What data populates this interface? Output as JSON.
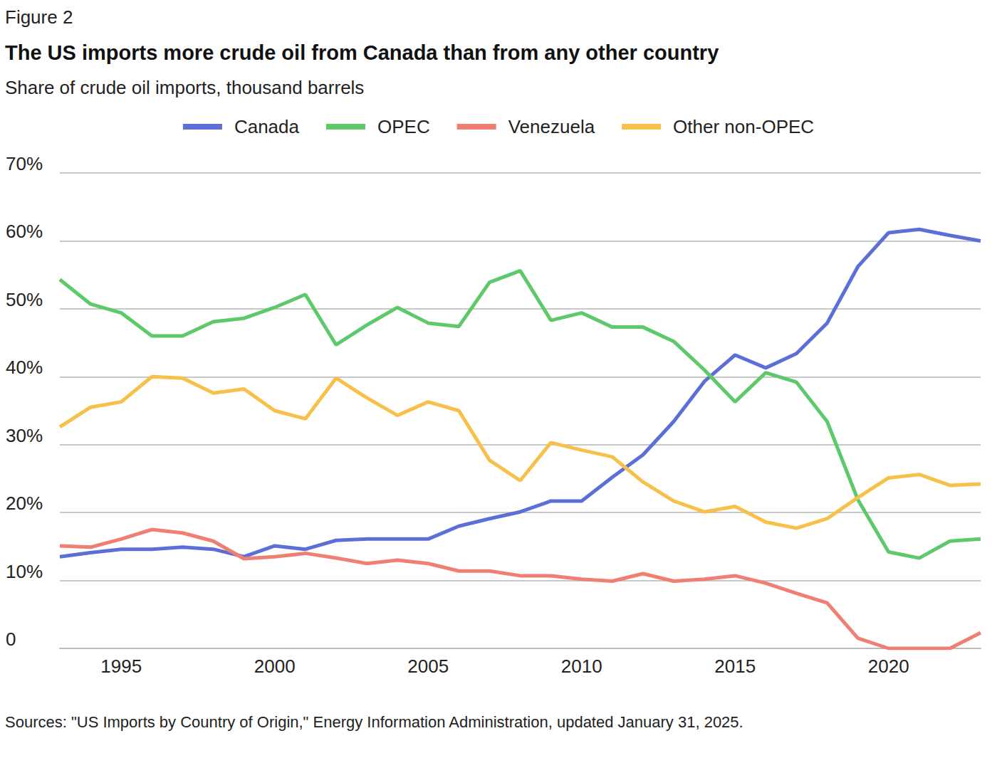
{
  "chart_data": {
    "type": "line",
    "label": "Figure 2",
    "title": "The US imports more crude oil from Canada than from any other country",
    "subtitle": "Share of crude oil imports, thousand barrels",
    "source": "Sources: \"US Imports by Country of Origin,\" Energy Information Administration, updated January 31, 2025.",
    "x": [
      1993,
      1994,
      1995,
      1996,
      1997,
      1998,
      1999,
      2000,
      2001,
      2002,
      2003,
      2004,
      2005,
      2006,
      2007,
      2008,
      2009,
      2010,
      2011,
      2012,
      2013,
      2014,
      2015,
      2016,
      2017,
      2018,
      2019,
      2020,
      2021,
      2022,
      2023
    ],
    "series": [
      {
        "name": "Canada",
        "color": "#5b6fd6",
        "values": [
          13.5,
          14.1,
          14.6,
          14.6,
          14.9,
          14.6,
          13.5,
          15.1,
          14.6,
          15.9,
          16.1,
          16.1,
          16.1,
          18.0,
          19.1,
          20.1,
          21.7,
          21.7,
          25.2,
          28.5,
          33.4,
          39.3,
          43.2,
          41.3,
          43.4,
          47.9,
          56.2,
          61.2,
          61.7,
          60.8,
          60.0
        ]
      },
      {
        "name": "OPEC",
        "color": "#5ec96a",
        "values": [
          54.3,
          50.7,
          49.4,
          46.0,
          46.0,
          48.1,
          48.6,
          50.2,
          52.1,
          44.7,
          47.6,
          50.2,
          47.9,
          47.4,
          53.9,
          55.6,
          48.3,
          49.4,
          47.3,
          47.3,
          45.2,
          41.0,
          36.3,
          40.6,
          39.2,
          33.4,
          21.9,
          14.2,
          13.3,
          15.8,
          16.1
        ]
      },
      {
        "name": "Venezuela",
        "color": "#ee7f72",
        "values": [
          15.1,
          14.9,
          16.1,
          17.5,
          17.0,
          15.8,
          13.2,
          13.5,
          14.0,
          13.3,
          12.5,
          13.0,
          12.5,
          11.4,
          11.4,
          10.7,
          10.7,
          10.2,
          9.9,
          11.0,
          9.9,
          10.2,
          10.7,
          9.6,
          8.1,
          6.7,
          1.5,
          0,
          0,
          0,
          2.3
        ]
      },
      {
        "name": "Other non-OPEC",
        "color": "#f7c04a",
        "values": [
          32.6,
          35.5,
          36.3,
          40.0,
          39.8,
          37.6,
          38.2,
          35.0,
          33.8,
          39.8,
          36.9,
          34.3,
          36.3,
          35.0,
          27.7,
          24.7,
          30.3,
          29.2,
          28.2,
          24.5,
          21.7,
          20.1,
          20.9,
          18.6,
          17.7,
          19.1,
          22.2,
          25.1,
          25.6,
          24.0,
          24.2
        ]
      }
    ],
    "xlim": [
      1993,
      2023
    ],
    "xticks": [
      1995,
      2000,
      2005,
      2010,
      2015,
      2020
    ],
    "ylim": [
      0,
      70
    ],
    "yticks": [
      0,
      {
        "value": 10,
        "label": "10%"
      },
      {
        "value": 20,
        "label": "20%"
      },
      {
        "value": 30,
        "label": "30%"
      },
      {
        "value": 40,
        "label": "40%"
      },
      {
        "value": 50,
        "label": "50%"
      },
      {
        "value": 60,
        "label": "60%"
      },
      {
        "value": 70,
        "label": "70%"
      }
    ],
    "grid": true,
    "legend": "top"
  }
}
